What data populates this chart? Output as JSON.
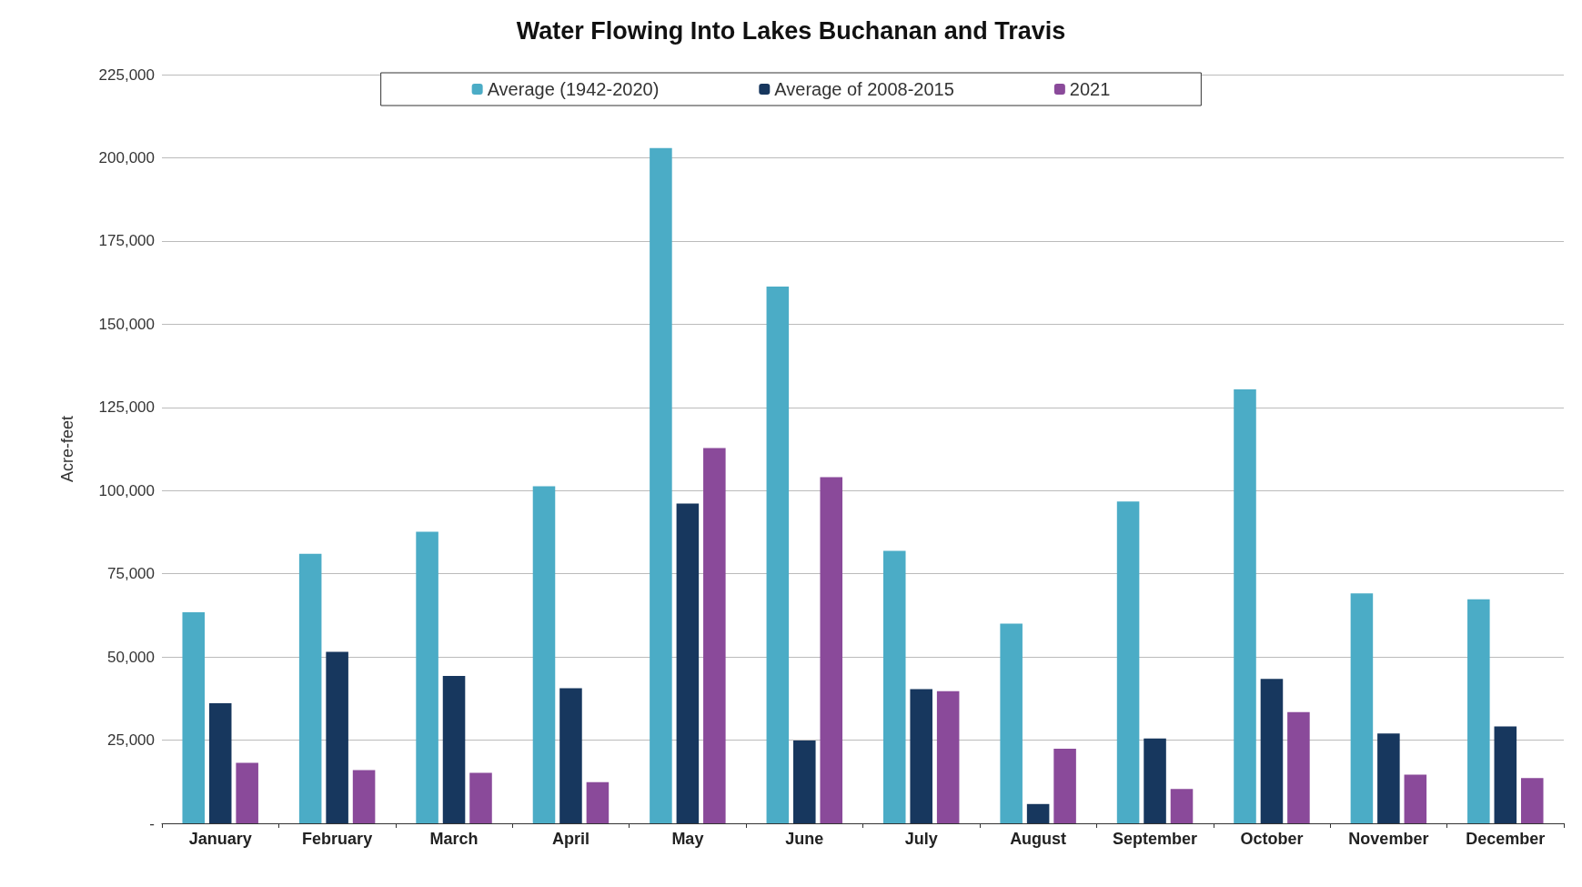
{
  "chart_data": {
    "type": "bar",
    "title": "Water Flowing Into Lakes Buchanan and Travis",
    "ylabel": "Acre-feet",
    "categories": [
      "January",
      "February",
      "March",
      "April",
      "May",
      "June",
      "July",
      "August",
      "September",
      "October",
      "November",
      "December"
    ],
    "series": [
      {
        "name": "Average (1942-2020)",
        "color": "#4bacc6",
        "values": [
          63400,
          81000,
          87600,
          101300,
          202900,
          161300,
          81900,
          60000,
          96700,
          130400,
          69100,
          67300
        ]
      },
      {
        "name": "Average of 2008-2015",
        "color": "#17375e",
        "values": [
          36100,
          51500,
          44300,
          40600,
          96100,
          24900,
          40300,
          5800,
          25500,
          43400,
          27000,
          29100
        ]
      },
      {
        "name": "2021",
        "color": "#8a4a9a",
        "values": [
          18200,
          16000,
          15200,
          12400,
          112800,
          104000,
          39700,
          22400,
          10300,
          33400,
          14600,
          13600
        ]
      }
    ],
    "ylim": [
      0,
      225000
    ],
    "yticks": [
      {
        "value": 0,
        "label": "-"
      },
      {
        "value": 25000,
        "label": "25,000"
      },
      {
        "value": 50000,
        "label": "50,000"
      },
      {
        "value": 75000,
        "label": "75,000"
      },
      {
        "value": 100000,
        "label": "100,000"
      },
      {
        "value": 125000,
        "label": "125,000"
      },
      {
        "value": 150000,
        "label": "150,000"
      },
      {
        "value": 175000,
        "label": "175,000"
      },
      {
        "value": 200000,
        "label": "200,000"
      },
      {
        "value": 225000,
        "label": "225,000"
      }
    ],
    "grid": "y",
    "legend": "top"
  }
}
